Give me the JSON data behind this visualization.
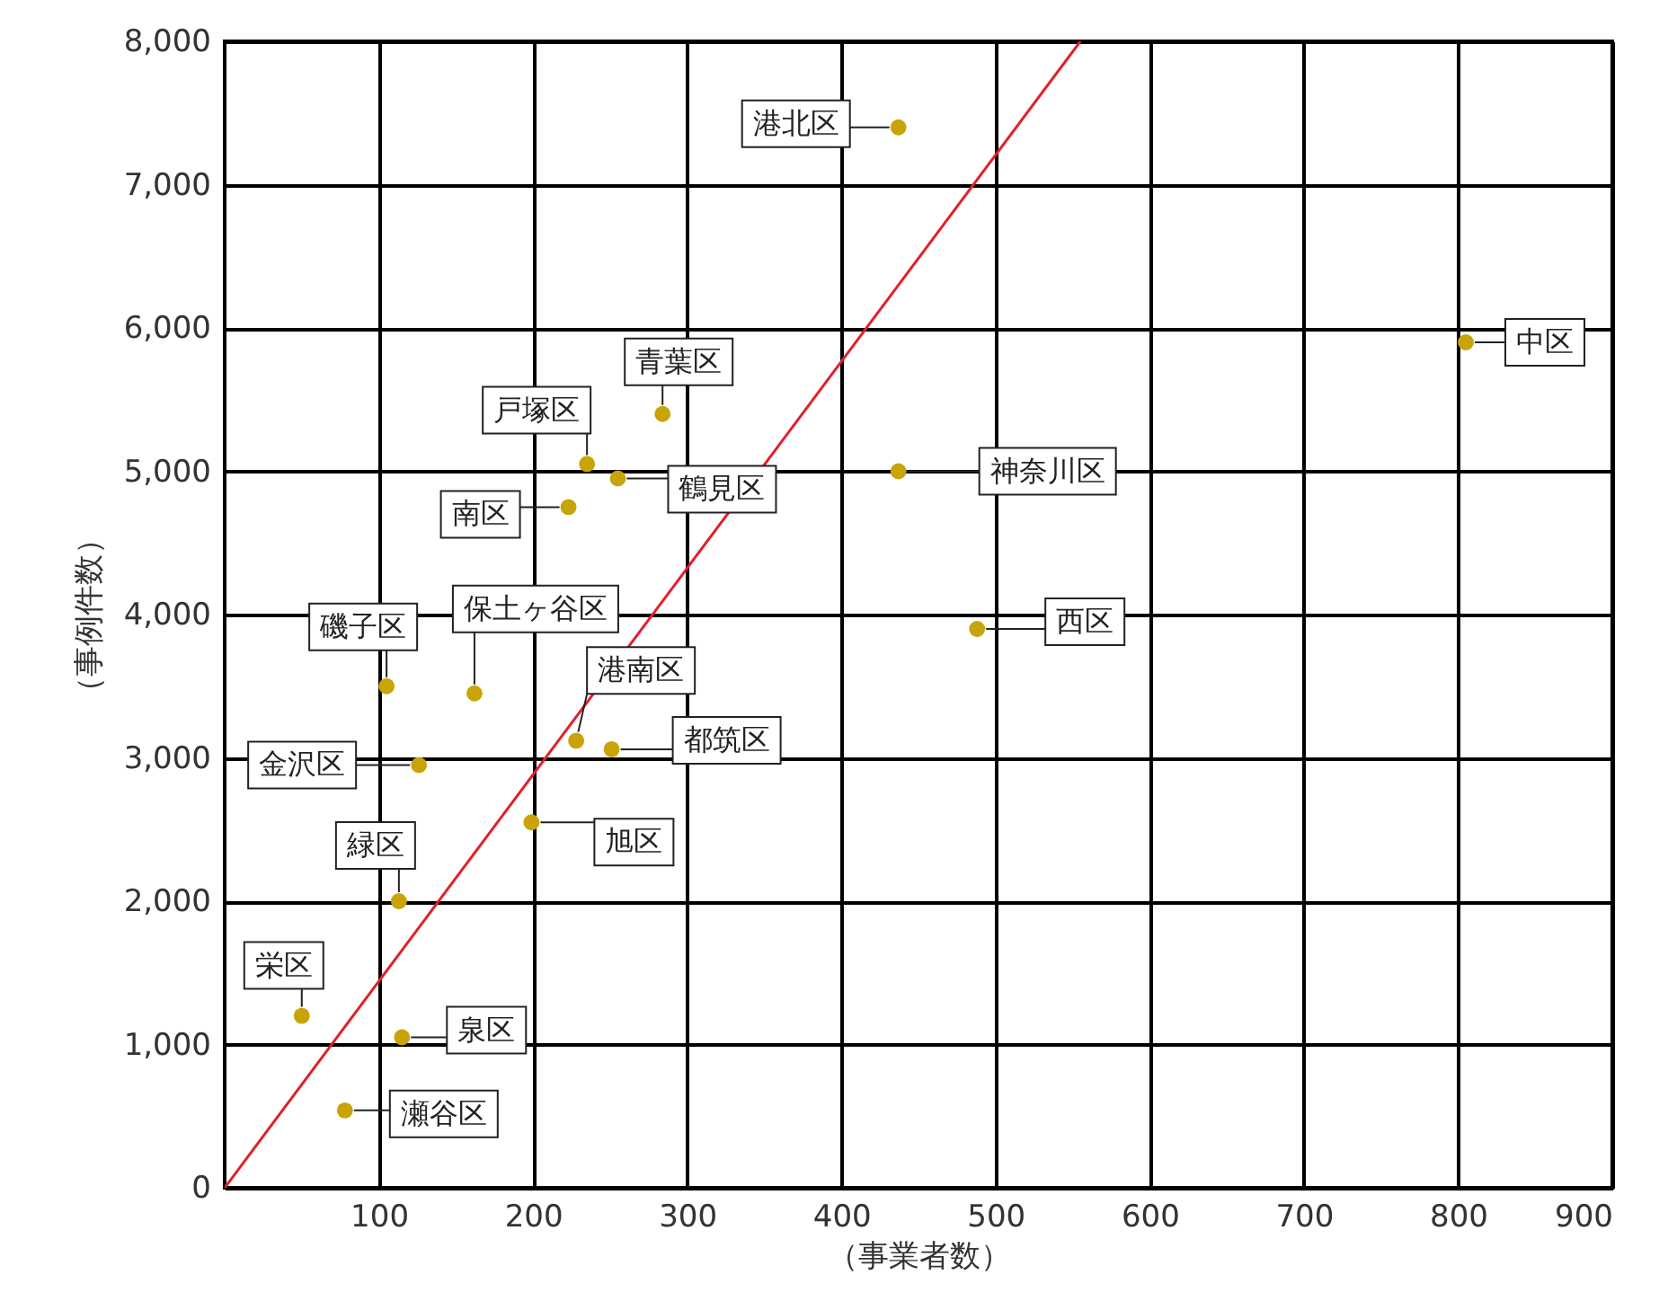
{
  "chart_data": {
    "type": "scatter",
    "xlabel": "（事業者数）",
    "ylabel": "（事例件数）",
    "xlim": [
      0,
      900
    ],
    "xticks": [
      100,
      200,
      300,
      400,
      500,
      600,
      700,
      800,
      900
    ],
    "ylim": [
      0,
      8000
    ],
    "yticks": [
      0,
      {
        "value": 1000,
        "label": "1,000"
      },
      {
        "value": 2000,
        "label": "2,000"
      },
      {
        "value": 3000,
        "label": "3,000"
      },
      {
        "value": 4000,
        "label": "4,000"
      },
      {
        "value": 5000,
        "label": "5,000"
      },
      {
        "value": 6000,
        "label": "6,000"
      },
      {
        "value": 7000,
        "label": "7,000"
      },
      {
        "value": 8000,
        "label": "8,000"
      }
    ],
    "grid": true,
    "marker": "circle",
    "series": [
      {
        "color": "#c9a409",
        "x": [
          437,
          805,
          284,
          235,
          255,
          223,
          437,
          488,
          105,
          162,
          228,
          251,
          126,
          199,
          113,
          50,
          115,
          78
        ],
        "values": [
          7400,
          5900,
          5400,
          5050,
          4950,
          4750,
          5000,
          3900,
          3500,
          3450,
          3120,
          3060,
          2950,
          2550,
          2000,
          1200,
          1050,
          540
        ]
      },
      {
        "type": "line",
        "marker": "none",
        "color": "#e0202a",
        "x": [
          0,
          555
        ],
        "values": [
          0,
          8000
        ]
      }
    ],
    "annotations": [
      {
        "text": "港北区",
        "x": 437,
        "y": 7400
      },
      {
        "text": "中区",
        "x": 805,
        "y": 5900
      },
      {
        "text": "青葉区",
        "x": 284,
        "y": 5400
      },
      {
        "text": "戸塚区",
        "x": 235,
        "y": 5050
      },
      {
        "text": "鶴見区",
        "x": 255,
        "y": 4950
      },
      {
        "text": "南区",
        "x": 223,
        "y": 4750
      },
      {
        "text": "神奈川区",
        "x": 437,
        "y": 5000
      },
      {
        "text": "西区",
        "x": 488,
        "y": 3900
      },
      {
        "text": "磯子区",
        "x": 105,
        "y": 3500
      },
      {
        "text": "保土ヶ谷区",
        "x": 162,
        "y": 3450
      },
      {
        "text": "港南区",
        "x": 228,
        "y": 3120
      },
      {
        "text": "都筑区",
        "x": 251,
        "y": 3060
      },
      {
        "text": "金沢区",
        "x": 126,
        "y": 2950
      },
      {
        "text": "旭区",
        "x": 199,
        "y": 2550
      },
      {
        "text": "緑区",
        "x": 113,
        "y": 2000
      },
      {
        "text": "栄区",
        "x": 50,
        "y": 1200
      },
      {
        "text": "泉区",
        "x": 115,
        "y": 1050
      },
      {
        "text": "瀬谷区",
        "x": 78,
        "y": 540
      }
    ]
  }
}
